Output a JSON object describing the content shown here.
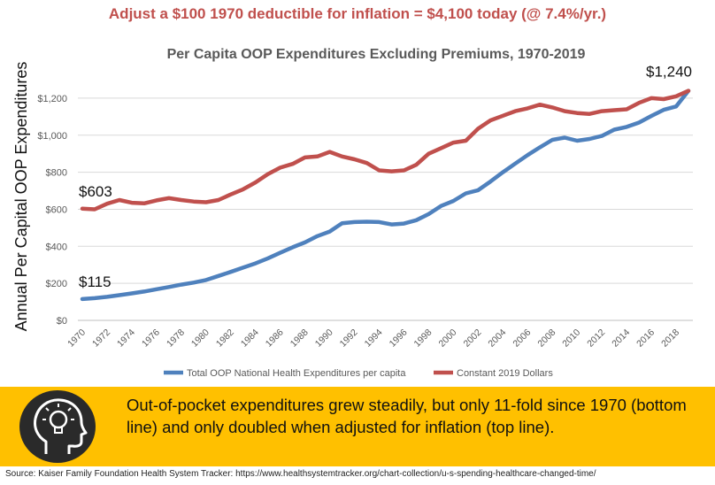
{
  "headline": "Adjust a $100 1970 deductible for inflation = $4,100 today (@ 7.4%/yr.)",
  "callout": "Out-of-pocket expenditures grew steadily, but only 11-fold since 1970 (bottom line) and only doubled when adjusted for inflation (top line).",
  "source": "Source: Kaiser Family Foundation Health System Tracker: https://www.healthsystemtracker.org/chart-collection/u-s-spending-healthcare-changed-time/",
  "icons": {
    "banner": "head-lightbulb-icon"
  },
  "colors": {
    "headline": "#c0504d",
    "banner": "#ffc000",
    "nominal": "#4f81bd",
    "constant": "#c0504d"
  },
  "chart_data": {
    "type": "line",
    "title": "Per Capita OOP Expenditures Excluding Premiums, 1970-2019",
    "ylabel": "Annual Per Capital OOP Expenditures",
    "xlabel": "",
    "ylim": [
      0,
      1300
    ],
    "yticks": [
      "$0",
      "$200",
      "$400",
      "$600",
      "$800",
      "$1,000",
      "$1,200"
    ],
    "ytick_values": [
      0,
      200,
      400,
      600,
      800,
      1000,
      1200
    ],
    "x": [
      1970,
      1971,
      1972,
      1973,
      1974,
      1975,
      1976,
      1977,
      1978,
      1979,
      1980,
      1981,
      1982,
      1983,
      1984,
      1985,
      1986,
      1987,
      1988,
      1989,
      1990,
      1991,
      1992,
      1993,
      1994,
      1995,
      1996,
      1997,
      1998,
      1999,
      2000,
      2001,
      2002,
      2003,
      2004,
      2005,
      2006,
      2007,
      2008,
      2009,
      2010,
      2011,
      2012,
      2013,
      2014,
      2015,
      2016,
      2017,
      2018,
      2019
    ],
    "xticks": [
      "1970",
      "1972",
      "1974",
      "1976",
      "1978",
      "1980",
      "1982",
      "1984",
      "1986",
      "1988",
      "1990",
      "1992",
      "1994",
      "1996",
      "1998",
      "2000",
      "2002",
      "2004",
      "2006",
      "2008",
      "2010",
      "2012",
      "2014",
      "2016",
      "2018"
    ],
    "grid": true,
    "legend_position": "bottom",
    "series": [
      {
        "name": "Total OOP National Health Expenditures per capita",
        "color": "#4f81bd",
        "values": [
          115,
          120,
          127,
          136,
          146,
          156,
          168,
          180,
          193,
          204,
          218,
          240,
          262,
          285,
          308,
          335,
          365,
          395,
          421,
          455,
          480,
          525,
          531,
          533,
          531,
          518,
          523,
          541,
          574,
          618,
          645,
          686,
          703,
          750,
          800,
          847,
          893,
          935,
          975,
          987,
          970,
          980,
          996,
          1030,
          1045,
          1068,
          1104,
          1137,
          1155,
          1240
        ]
      },
      {
        "name": "Constant 2019 Dollars",
        "color": "#c0504d",
        "values": [
          603,
          600,
          630,
          650,
          635,
          632,
          648,
          660,
          650,
          642,
          638,
          650,
          680,
          708,
          745,
          790,
          825,
          845,
          880,
          885,
          910,
          885,
          870,
          850,
          810,
          805,
          810,
          840,
          900,
          930,
          960,
          970,
          1035,
          1080,
          1105,
          1130,
          1145,
          1165,
          1150,
          1130,
          1120,
          1115,
          1130,
          1135,
          1140,
          1175,
          1200,
          1195,
          1210,
          1240
        ]
      }
    ],
    "annotations": [
      {
        "text": "$603",
        "series": 1,
        "year": 1970
      },
      {
        "text": "$115",
        "series": 0,
        "year": 1970
      },
      {
        "text": "$1,240",
        "series": 1,
        "year": 2019
      }
    ]
  }
}
